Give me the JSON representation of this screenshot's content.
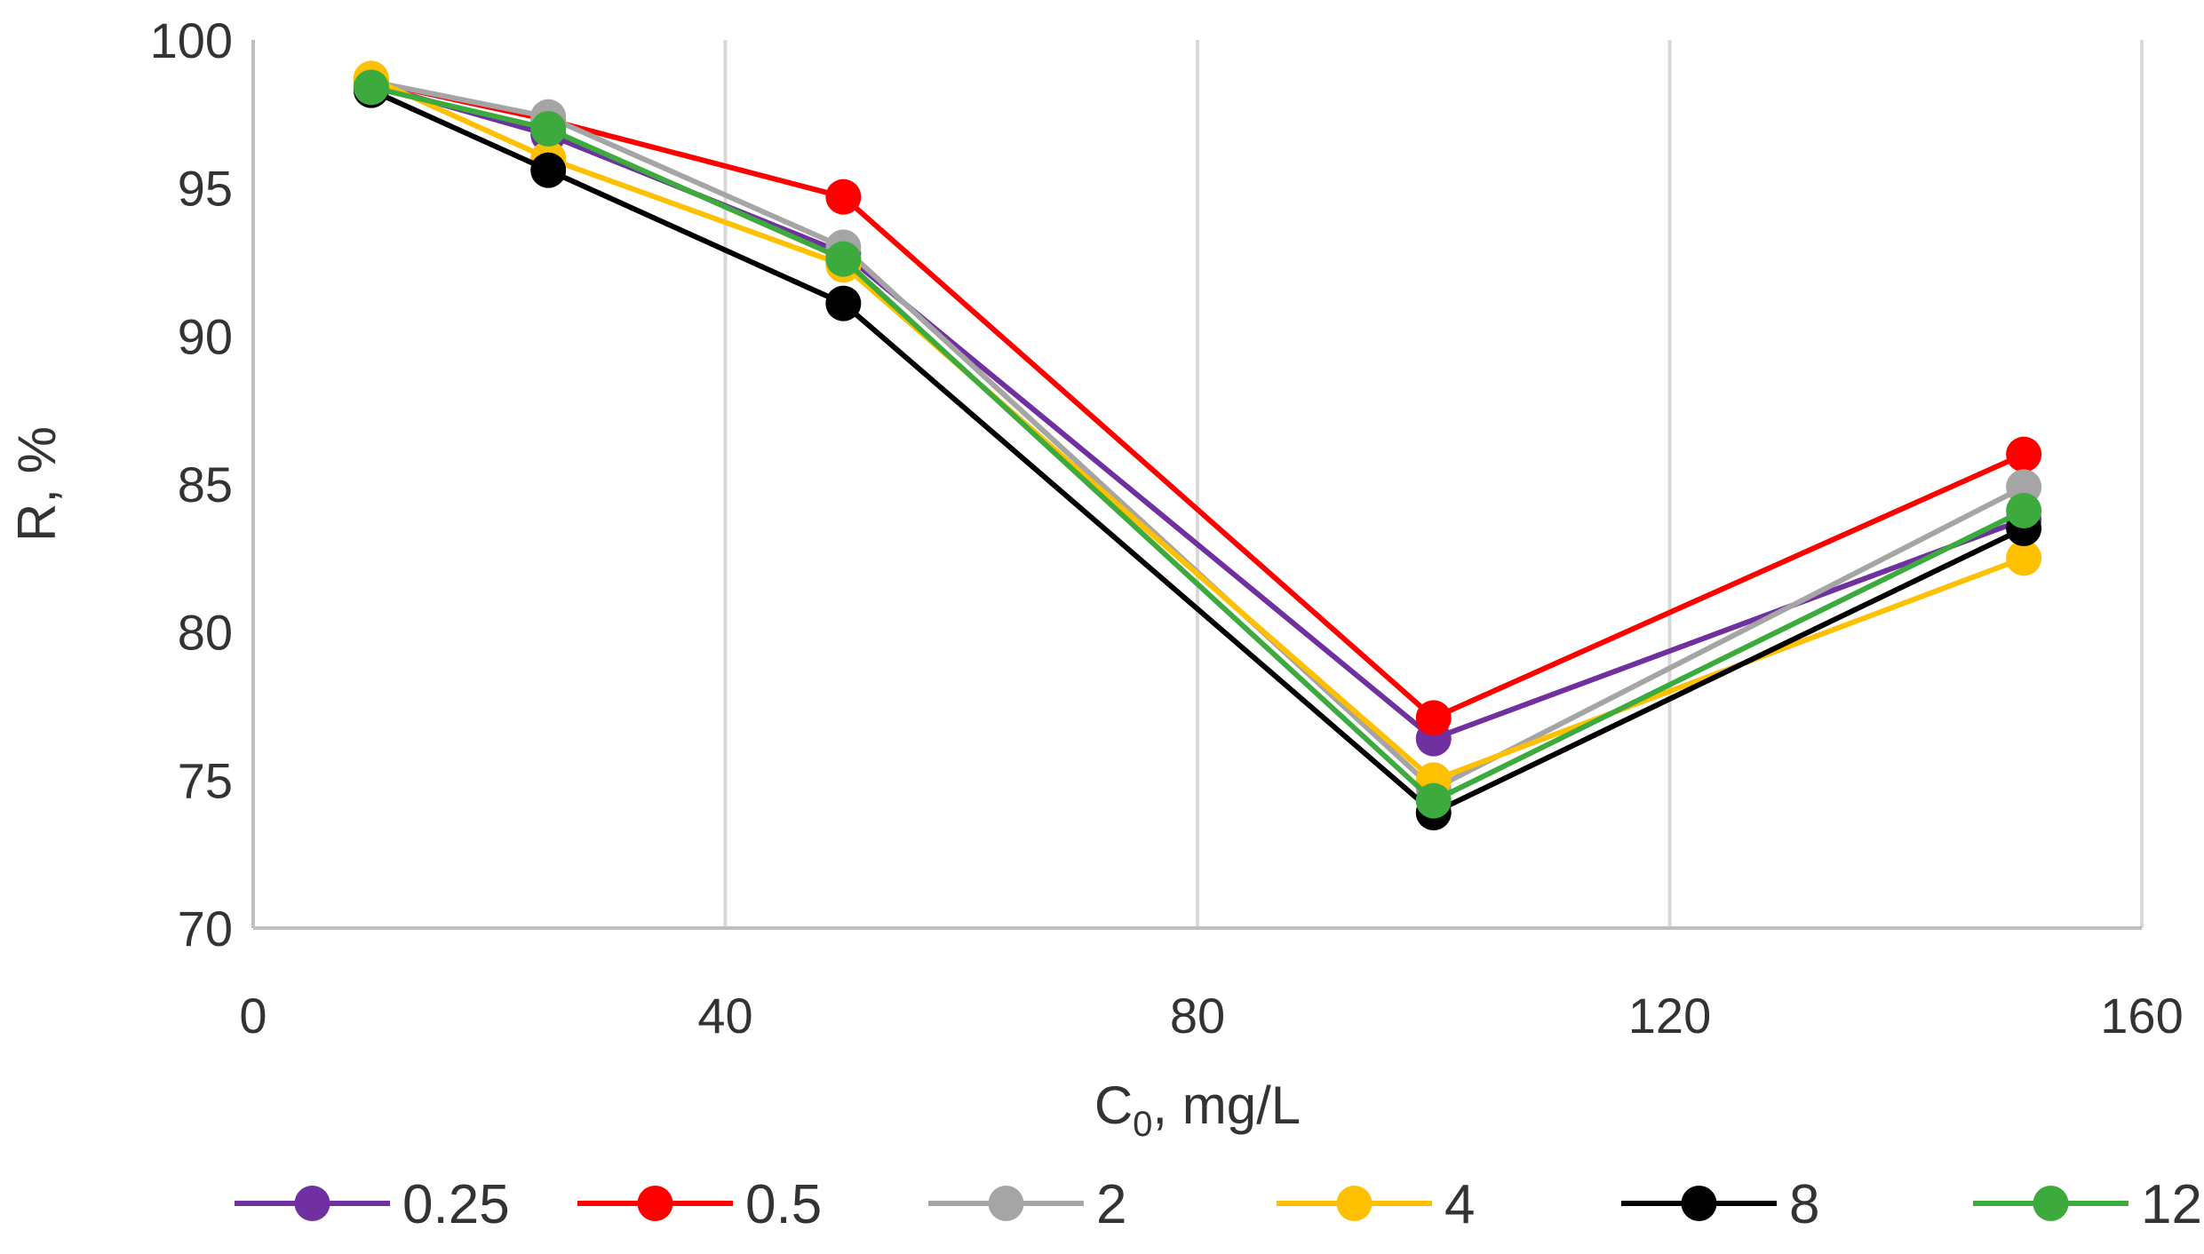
{
  "chart_data": {
    "type": "line",
    "title": "",
    "xlabel": "C",
    "xlabel_subscript": "0",
    "xlabel_suffix": ", mg/L",
    "ylabel": "R, %",
    "xlim": [
      0,
      160
    ],
    "ylim": [
      70,
      100
    ],
    "x_ticks": [
      0,
      40,
      80,
      120,
      160
    ],
    "y_ticks": [
      70,
      75,
      80,
      85,
      90,
      95,
      100
    ],
    "x_tick_labels": [
      "0",
      "40",
      "80",
      "120",
      "160"
    ],
    "y_tick_labels": [
      "70",
      "75",
      "80",
      "85",
      "90",
      "95",
      "100"
    ],
    "vertical_grid": true,
    "legend_position": "bottom",
    "x": [
      10,
      25,
      50,
      100,
      150
    ],
    "series": [
      {
        "name": "0.25",
        "color": "#7030A0",
        "values": [
          98.5,
          96.8,
          92.8,
          76.4,
          83.8
        ]
      },
      {
        "name": "0.5",
        "color": "#FF0000",
        "values": [
          98.6,
          97.3,
          94.7,
          77.1,
          86.0
        ]
      },
      {
        "name": "2",
        "color": "#A5A5A5",
        "values": [
          98.6,
          97.4,
          93.0,
          74.7,
          84.9
        ]
      },
      {
        "name": "4",
        "color": "#FFC000",
        "values": [
          98.7,
          96.0,
          92.4,
          75.0,
          82.5
        ]
      },
      {
        "name": "8",
        "color": "#000000",
        "values": [
          98.3,
          95.6,
          91.1,
          73.9,
          83.5
        ]
      },
      {
        "name": "12",
        "color": "#3DAA3D",
        "values": [
          98.4,
          97.0,
          92.6,
          74.3,
          84.1
        ]
      }
    ]
  }
}
